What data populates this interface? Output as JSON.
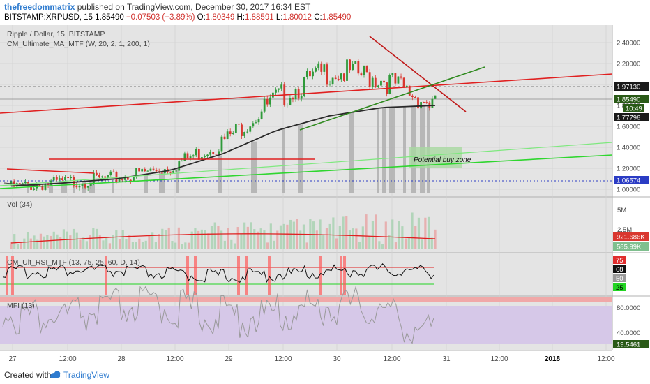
{
  "header": {
    "author": "thefreedommatrix",
    "published": "published on TradingView.com, December 30, 2017 16:34 EST",
    "symbol": "BITSTAMP:XRPUSD, 15",
    "last": "1.85490",
    "change": "−0.07503 (−3.89%)",
    "o_label": "O:",
    "o_val": "1.80349",
    "h_label": "H:",
    "h_val": "1.88591",
    "l_label": "L:",
    "l_val": "1.80012",
    "c_label": "C:",
    "c_val": "1.85490"
  },
  "main_pane": {
    "title": "Ripple / Dollar, 15, BITSTAMP",
    "indicator": "CM_Ultimate_MA_MTF (W, 20, 2, 1, 200, 1)",
    "annotation": "Potential buy zone",
    "price_ticks": [
      "2.40000",
      "2.20000",
      "2.00000",
      "1.80000",
      "1.60000",
      "1.40000",
      "1.20000",
      "1.00000"
    ],
    "price_badges": [
      {
        "text": "1.97130",
        "bg": "#1a1a1a"
      },
      {
        "text": "1.85490",
        "bg": "#2a5a17"
      },
      {
        "text": "10:49",
        "bg": "#2a5a17"
      },
      {
        "text": "1.77796",
        "bg": "#1a1a1a"
      },
      {
        "text": "1.06574",
        "bg": "#2b3cc4"
      }
    ]
  },
  "vol_pane": {
    "title": "Vol (34)",
    "ticks": [
      "5M",
      "2.5M"
    ],
    "badges": [
      {
        "text": "921.686K",
        "bg": "#d9372f"
      },
      {
        "text": "585.99K",
        "bg": "#7fbf8e"
      }
    ]
  },
  "rsi_pane": {
    "title": "CM_Ult_RSI_MTF (13, 75, 25, 60, D, 14)",
    "badges": [
      {
        "text": "75",
        "bg": "#e02d2d",
        "fg": "#ffffff"
      },
      {
        "text": "68",
        "bg": "#111111",
        "fg": "#ffffff"
      },
      {
        "text": "50",
        "bg": "#9a9a9a",
        "fg": "#ffffff"
      },
      {
        "text": "25",
        "bg": "#22d422",
        "fg": "#000000"
      }
    ]
  },
  "mfi_pane": {
    "title": "MFI (13)",
    "ticks": [
      "80.0000",
      "40.0000"
    ],
    "badge": {
      "text": "19.5461",
      "bg": "#2a5a17"
    }
  },
  "time_axis": {
    "labels": [
      "27",
      "12:00",
      "28",
      "12:00",
      "29",
      "12:00",
      "30",
      "12:00",
      "31",
      "12:00",
      "2018",
      "12:00"
    ]
  },
  "footer": {
    "created": "Created with",
    "brand": "TradingView"
  },
  "chart_data": {
    "type": "line",
    "title": "Ripple / Dollar, 15, BITSTAMP",
    "x": [
      "27",
      "12:00",
      "28",
      "12:00",
      "29",
      "12:00",
      "30",
      "12:00",
      "31"
    ],
    "series": [
      {
        "name": "XRPUSD",
        "values": [
          1.05,
          1.1,
          1.14,
          1.25,
          1.5,
          1.92,
          2.2,
          2.12,
          1.85
        ]
      },
      {
        "name": "CM_Ultimate_MA_MTF",
        "values": [
          1.03,
          1.06,
          1.1,
          1.18,
          1.34,
          1.56,
          1.7,
          1.78,
          1.8
        ]
      }
    ],
    "ylim": [
      0.95,
      2.52
    ],
    "grid": true,
    "colors": {
      "trend_red": "#e02020",
      "trend_green": "#3aaa2a",
      "ma": "#222222",
      "zone": "#a8d8a0",
      "background": "#e4e4e4",
      "volume_ma": "#e02020",
      "rsi": "#111111",
      "mfi": "#999999",
      "mfi_band": "#d6c8e8"
    }
  }
}
